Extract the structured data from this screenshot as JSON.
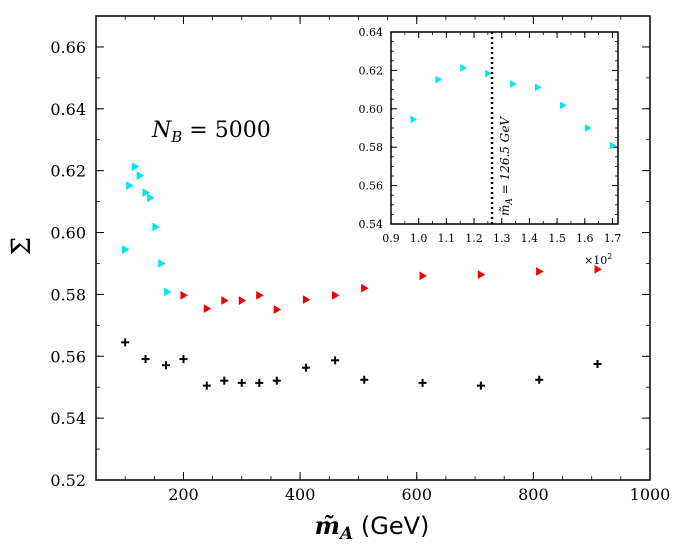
{
  "chart_data": [
    {
      "id": "main",
      "type": "scatter",
      "title": "",
      "xlabel": "m̃A (GeV)",
      "xlabel_symbol": "m̃",
      "xlabel_subscript": "A",
      "xlabel_unit": " (GeV)",
      "ylabel": "Σ̄",
      "xlim": [
        50,
        1000
      ],
      "ylim": [
        0.52,
        0.67
      ],
      "xticks": [
        200,
        400,
        600,
        800,
        1000
      ],
      "yticks": [
        0.52,
        0.54,
        0.56,
        0.58,
        0.6,
        0.62,
        0.64,
        0.66
      ],
      "annotation": "N_B = 5000",
      "annotation_main": "N",
      "annotation_sub": "B",
      "annotation_rest": " = 5000",
      "series": [
        {
          "name": "cyan triangles",
          "marker": "triangle-right",
          "color": "#00e5ee",
          "x": [
            100,
            107,
            117,
            125,
            135,
            143,
            152,
            162,
            172
          ],
          "y": [
            0.5945,
            0.6152,
            0.6213,
            0.6184,
            0.6129,
            0.6112,
            0.6018,
            0.59,
            0.5808
          ]
        },
        {
          "name": "red triangles",
          "marker": "triangle-right",
          "color": "#ee0000",
          "x": [
            200,
            240,
            270,
            300,
            330,
            360,
            410,
            460,
            510,
            610,
            710,
            810,
            910
          ],
          "y": [
            0.5797,
            0.5754,
            0.578,
            0.578,
            0.5797,
            0.5751,
            0.5783,
            0.5797,
            0.582,
            0.586,
            0.5864,
            0.5874,
            0.5881
          ]
        },
        {
          "name": "black crosses",
          "marker": "plus",
          "color": "#000000",
          "x": [
            100,
            135,
            170,
            200,
            240,
            270,
            300,
            330,
            360,
            410,
            460,
            510,
            610,
            710,
            810,
            910
          ],
          "y": [
            0.5645,
            0.5591,
            0.5571,
            0.5591,
            0.5505,
            0.5521,
            0.5514,
            0.5514,
            0.5521,
            0.5563,
            0.5587,
            0.5524,
            0.5514,
            0.5505,
            0.5524,
            0.5575
          ]
        }
      ]
    },
    {
      "id": "inset",
      "type": "scatter",
      "title": "",
      "xlabel": "",
      "ylabel": "",
      "xlim": [
        0.9,
        1.72
      ],
      "ylim": [
        0.54,
        0.64
      ],
      "xticks": [
        0.9,
        1.0,
        1.1,
        1.2,
        1.3,
        1.4,
        1.5,
        1.6,
        1.7
      ],
      "yticks": [
        0.54,
        0.56,
        0.58,
        0.6,
        0.62,
        0.64
      ],
      "x_multiplier": "×10",
      "x_multiplier_exp": "2",
      "vline": {
        "x": 1.265,
        "style": "dotted",
        "label": "m̃A = 126.5 GeV",
        "label_symbol": "m̃",
        "label_sub": "A",
        "label_rest": " = 126.5 GeV"
      },
      "series": [
        {
          "name": "cyan triangles",
          "marker": "triangle-right",
          "color": "#00e5ee",
          "x": [
            0.98,
            1.07,
            1.16,
            1.25,
            1.34,
            1.43,
            1.52,
            1.61,
            1.7
          ],
          "y": [
            0.5945,
            0.6152,
            0.6213,
            0.6184,
            0.6129,
            0.6112,
            0.6018,
            0.59,
            0.5808
          ]
        }
      ]
    }
  ]
}
